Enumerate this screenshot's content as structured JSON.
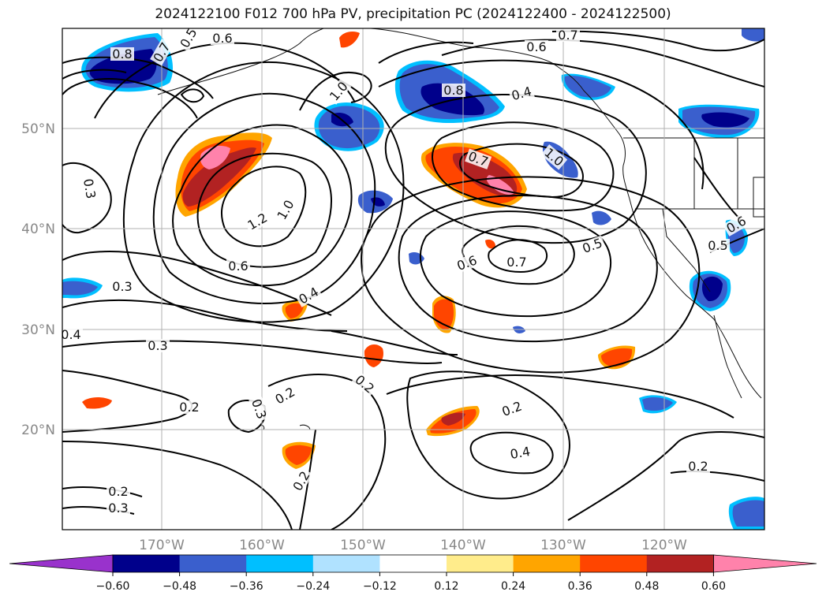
{
  "title": "2024122100 F012 700 hPa PV, precipitation PC (2024122400 - 2024122500)",
  "map": {
    "lat_ticks": [
      "50°N",
      "40°N",
      "30°N",
      "20°N"
    ],
    "lon_ticks": [
      "170°W",
      "160°W",
      "150°W",
      "140°W",
      "130°W",
      "120°W"
    ],
    "contour_labels": [
      "0.8",
      "0.7",
      "0.6",
      "0.5",
      "0.7",
      "0.6",
      "0.4",
      "0.8",
      "1.0",
      "0.7",
      "1.0",
      "0.3",
      "1.2",
      "1.0",
      "0.6",
      "0.4",
      "0.3",
      "0.3",
      "0.4",
      "0.6",
      "0.7",
      "0.5",
      "0.6",
      "0.5",
      "0.2",
      "0.2",
      "0.3",
      "0.2",
      "0.2",
      "0.4",
      "0.2",
      "0.2",
      "0.3",
      "0.2"
    ]
  },
  "colorbar": {
    "ticks": [
      "−0.60",
      "−0.48",
      "−0.36",
      "−0.24",
      "−0.12",
      "0.12",
      "0.24",
      "0.36",
      "0.48",
      "0.60"
    ],
    "colors": [
      "#9932cc",
      "#00008b",
      "#3a5fcd",
      "#00bfff",
      "#b0e2ff",
      "#ffffff",
      "#ffec8b",
      "#ffa500",
      "#ff4500",
      "#b22222",
      "#ff82ab"
    ]
  }
}
